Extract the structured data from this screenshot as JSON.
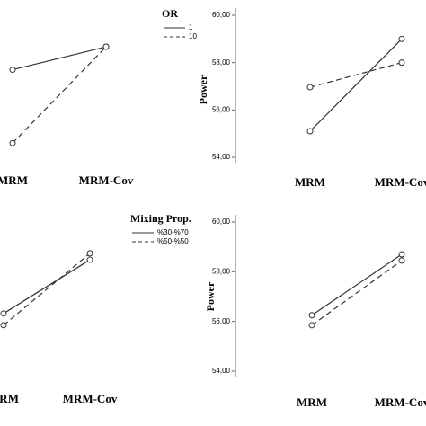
{
  "chart_data": [
    {
      "type": "line",
      "categories": [
        "MRM",
        "MRM-Cov"
      ],
      "legend_title": "OR",
      "ylim": [
        54,
        60
      ],
      "series": [
        {
          "name": "1",
          "style": "solid",
          "color": "#333333",
          "values": [
            57.7,
            58.67
          ]
        },
        {
          "name": "10",
          "style": "dashed",
          "color": "#333333",
          "values": [
            54.6,
            58.67
          ]
        }
      ]
    },
    {
      "type": "line",
      "categories": [
        "MRM",
        "MRM-Cov"
      ],
      "y_label": "Power",
      "ylim": [
        54,
        60
      ],
      "yticks": [
        {
          "value": 54,
          "label": "54,00"
        },
        {
          "value": 56,
          "label": "56,00"
        },
        {
          "value": 58,
          "label": "58,00"
        },
        {
          "value": 60,
          "label": "60,00"
        }
      ],
      "series": [
        {
          "style": "solid",
          "color": "#333333",
          "values": [
            55.1,
            59.0
          ]
        },
        {
          "style": "dashed",
          "color": "#333333",
          "values": [
            56.96,
            58.0
          ]
        }
      ]
    },
    {
      "type": "line",
      "categories": [
        "MRM",
        "MRM-Cov"
      ],
      "legend_title": "Mixing Prop.",
      "ylim": [
        54,
        60
      ],
      "series": [
        {
          "name": "%30-%70",
          "style": "solid",
          "color": "#333333",
          "values": [
            56.32,
            58.48
          ]
        },
        {
          "name": "%50-%50",
          "style": "dashed",
          "color": "#333333",
          "values": [
            55.85,
            58.74
          ]
        }
      ]
    },
    {
      "type": "line",
      "categories": [
        "MRM",
        "MRM-Cov"
      ],
      "y_label": "Power",
      "ylim": [
        54,
        60
      ],
      "yticks": [
        {
          "value": 54,
          "label": "54,00"
        },
        {
          "value": 56,
          "label": "56,00"
        },
        {
          "value": 58,
          "label": "58,00"
        },
        {
          "value": 60,
          "label": "60,00"
        }
      ],
      "series": [
        {
          "style": "solid",
          "color": "#333333",
          "values": [
            56.25,
            58.7
          ]
        },
        {
          "style": "dashed",
          "color": "#333333",
          "values": [
            55.85,
            58.45
          ]
        }
      ]
    }
  ]
}
